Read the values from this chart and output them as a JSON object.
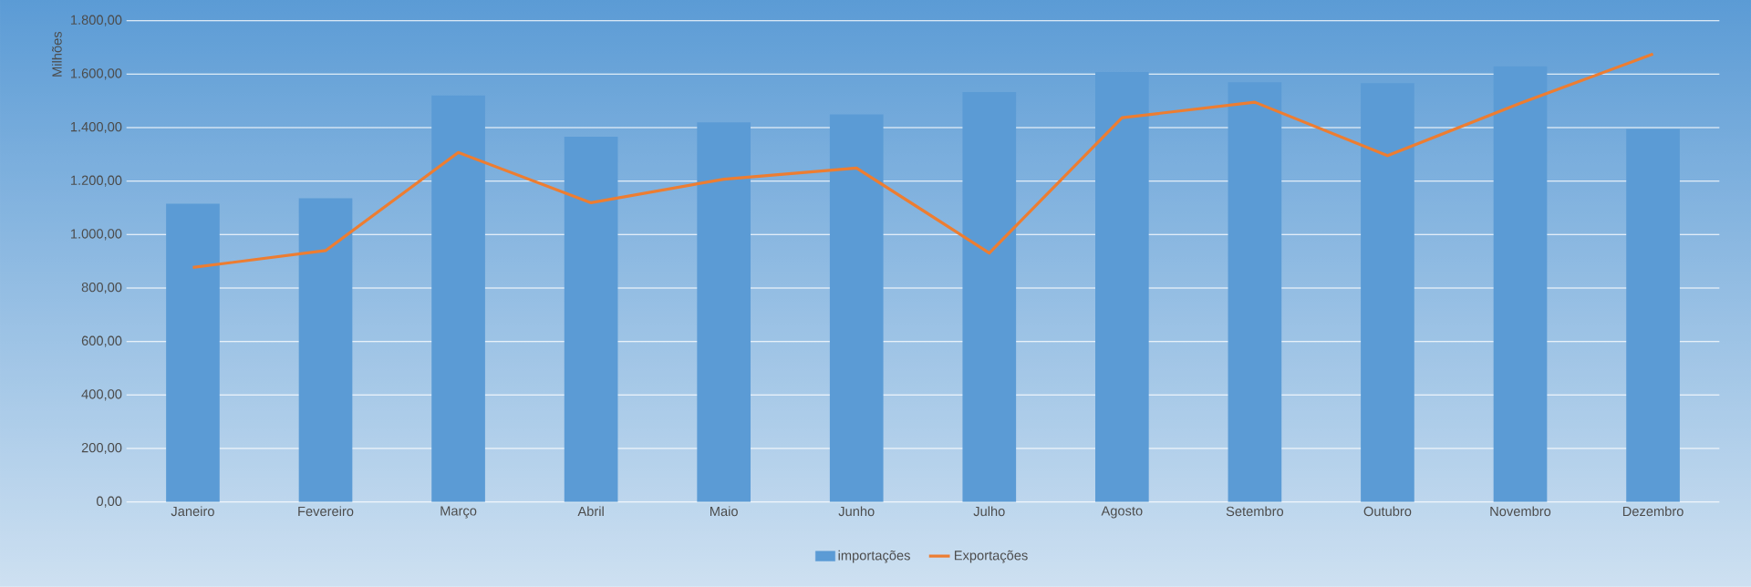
{
  "chart_data": {
    "type": "bar",
    "ylabel": "Milhões",
    "categories": [
      "Janeiro",
      "Fevereiro",
      "Março",
      "Abril",
      "Maio",
      "Junho",
      "Julho",
      "Agosto",
      "Setembro",
      "Outubro",
      "Novembro",
      "Dezembro"
    ],
    "series": [
      {
        "name": "importações",
        "color": "#5b9bd5",
        "values": [
          1115,
          1136,
          1520,
          1366,
          1420,
          1449,
          1533,
          1608,
          1570,
          1566,
          1629,
          1395
        ]
      },
      {
        "name": "Exportações",
        "type": "line",
        "color": "#ed7d31",
        "values": [
          877,
          940,
          1307,
          1119,
          1207,
          1249,
          931,
          1437,
          1495,
          1295,
          1491,
          1675
        ]
      }
    ],
    "ylim": [
      0,
      1800
    ],
    "yticks": [
      {
        "value": 0,
        "label": "0,00"
      },
      {
        "value": 200,
        "label": "200,00"
      },
      {
        "value": 400,
        "label": "400,00"
      },
      {
        "value": 600,
        "label": "600,00"
      },
      {
        "value": 800,
        "label": "800,00"
      },
      {
        "value": 1000,
        "label": "1.000,00"
      },
      {
        "value": 1200,
        "label": "1.200,00"
      },
      {
        "value": 1400,
        "label": "1.400,00"
      },
      {
        "value": 1600,
        "label": "1.600,00"
      },
      {
        "value": 1800,
        "label": "1.800,00"
      }
    ],
    "grid": "y",
    "legend": "bottom",
    "marker": "none",
    "line_style": "solid"
  }
}
